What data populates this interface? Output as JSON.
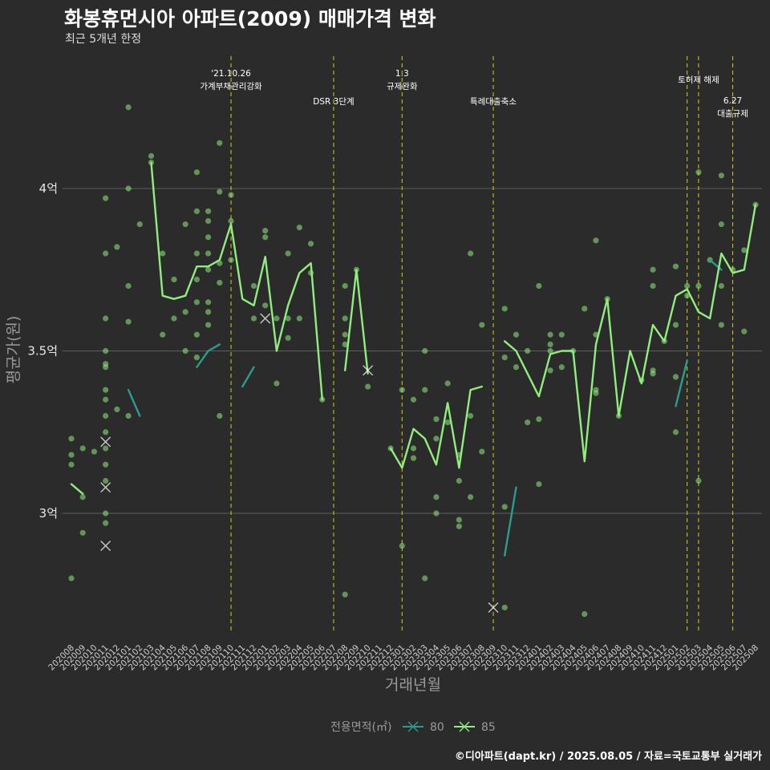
{
  "header": {
    "title": "화봉휴먼시아 아파트(2009) 매매가격 변화",
    "subtitle": "최근 5개년 한정",
    "caption": "©디아파트(dapt.kr) / 2025.08.05 / 자료=국토교통부 실거래가"
  },
  "colors": {
    "background": "#2b2b2b",
    "series_80": "#2a9d8f",
    "series_85": "#90ee7e",
    "event_line": "#d4d40a",
    "grid": "#5e5e5e"
  },
  "chart_data": {
    "type": "line",
    "title": "화봉휴먼시아 아파트(2009) 매매가격 변화",
    "subtitle": "최근 5개년 한정",
    "xlabel": "거래년월",
    "ylabel": "평균가(원)",
    "ylim": [
      2.62,
      4.42
    ],
    "yticks": [
      {
        "value": 3.0,
        "label": "3억"
      },
      {
        "value": 3.5,
        "label": "3.5억"
      },
      {
        "value": 4.0,
        "label": "4억"
      }
    ],
    "grid": true,
    "legend": {
      "title": "전용면적(㎡)",
      "position": "bottom",
      "entries": [
        "80",
        "85"
      ]
    },
    "x": [
      "202008",
      "202009",
      "202010",
      "202011",
      "202012",
      "202101",
      "202102",
      "202103",
      "202104",
      "202105",
      "202106",
      "202107",
      "202108",
      "202109",
      "202110",
      "202111",
      "202112",
      "202201",
      "202202",
      "202203",
      "202204",
      "202205",
      "202206",
      "202207",
      "202208",
      "202209",
      "202210",
      "202211",
      "202212",
      "202301",
      "202302",
      "202303",
      "202304",
      "202305",
      "202306",
      "202307",
      "202308",
      "202309",
      "202310",
      "202311",
      "202312",
      "202401",
      "202402",
      "202403",
      "202404",
      "202405",
      "202406",
      "202407",
      "202408",
      "202409",
      "202410",
      "202411",
      "202412",
      "202501",
      "202502",
      "202503",
      "202504",
      "202505",
      "202506",
      "202507",
      "202508"
    ],
    "series": [
      {
        "name": "80",
        "values": [
          null,
          null,
          null,
          3.06,
          null,
          3.38,
          3.3,
          null,
          3.3,
          null,
          null,
          3.45,
          3.5,
          3.52,
          null,
          3.39,
          3.45,
          null,
          null,
          null,
          null,
          null,
          null,
          null,
          null,
          null,
          null,
          null,
          null,
          null,
          3.15,
          null,
          2.9,
          null,
          2.99,
          null,
          3.0,
          null,
          2.87,
          3.08,
          null,
          null,
          null,
          null,
          null,
          2.99,
          null,
          null,
          null,
          null,
          3.3,
          null,
          null,
          3.33,
          3.47,
          null,
          3.78,
          3.75,
          null,
          3.68,
          null
        ]
      },
      {
        "name": "85",
        "values": [
          3.09,
          3.06,
          null,
          3.3,
          null,
          3.77,
          null,
          4.08,
          3.67,
          3.66,
          3.67,
          3.76,
          3.76,
          3.78,
          3.89,
          3.66,
          3.64,
          3.79,
          3.5,
          3.64,
          3.74,
          3.77,
          3.35,
          null,
          3.44,
          3.75,
          3.43,
          null,
          3.2,
          3.14,
          3.26,
          3.23,
          3.15,
          3.34,
          3.14,
          3.38,
          3.39,
          null,
          3.53,
          3.5,
          3.43,
          3.36,
          3.49,
          3.5,
          3.5,
          3.16,
          3.52,
          3.66,
          3.3,
          3.5,
          3.4,
          3.58,
          3.53,
          3.67,
          3.69,
          3.62,
          3.6,
          3.8,
          3.74,
          3.75,
          3.95
        ]
      }
    ],
    "scatter": [
      {
        "x": "202008",
        "y": 3.23
      },
      {
        "x": "202008",
        "y": 3.18
      },
      {
        "x": "202008",
        "y": 3.15
      },
      {
        "x": "202008",
        "y": 2.8
      },
      {
        "x": "202009",
        "y": 3.2
      },
      {
        "x": "202009",
        "y": 2.94
      },
      {
        "x": "202009",
        "y": 3.05
      },
      {
        "x": "202010",
        "y": 3.19
      },
      {
        "x": "202011",
        "y": 3.97
      },
      {
        "x": "202011",
        "y": 3.8
      },
      {
        "x": "202011",
        "y": 3.6
      },
      {
        "x": "202011",
        "y": 3.5
      },
      {
        "x": "202011",
        "y": 3.46
      },
      {
        "x": "202011",
        "y": 3.45
      },
      {
        "x": "202011",
        "y": 3.38
      },
      {
        "x": "202011",
        "y": 3.35
      },
      {
        "x": "202011",
        "y": 3.3
      },
      {
        "x": "202011",
        "y": 3.25
      },
      {
        "x": "202011",
        "y": 3.2
      },
      {
        "x": "202011",
        "y": 3.15
      },
      {
        "x": "202011",
        "y": 3.1
      },
      {
        "x": "202011",
        "y": 3.0
      },
      {
        "x": "202011",
        "y": 2.97
      },
      {
        "x": "202012",
        "y": 3.82
      },
      {
        "x": "202012",
        "y": 3.32
      },
      {
        "x": "202101",
        "y": 4.25
      },
      {
        "x": "202101",
        "y": 4.0
      },
      {
        "x": "202101",
        "y": 3.7
      },
      {
        "x": "202101",
        "y": 3.59
      },
      {
        "x": "202101",
        "y": 3.3
      },
      {
        "x": "202102",
        "y": 3.89
      },
      {
        "x": "202103",
        "y": 4.1
      },
      {
        "x": "202103",
        "y": 4.08
      },
      {
        "x": "202104",
        "y": 3.8
      },
      {
        "x": "202104",
        "y": 3.55
      },
      {
        "x": "202105",
        "y": 3.72
      },
      {
        "x": "202105",
        "y": 3.6
      },
      {
        "x": "202106",
        "y": 3.89
      },
      {
        "x": "202106",
        "y": 3.62
      },
      {
        "x": "202106",
        "y": 3.5
      },
      {
        "x": "202107",
        "y": 4.05
      },
      {
        "x": "202107",
        "y": 3.93
      },
      {
        "x": "202107",
        "y": 3.8
      },
      {
        "x": "202107",
        "y": 3.72
      },
      {
        "x": "202107",
        "y": 3.65
      },
      {
        "x": "202107",
        "y": 3.55
      },
      {
        "x": "202107",
        "y": 3.48
      },
      {
        "x": "202108",
        "y": 3.93
      },
      {
        "x": "202108",
        "y": 3.9
      },
      {
        "x": "202108",
        "y": 3.85
      },
      {
        "x": "202108",
        "y": 3.8
      },
      {
        "x": "202108",
        "y": 3.75
      },
      {
        "x": "202108",
        "y": 3.65
      },
      {
        "x": "202108",
        "y": 3.62
      },
      {
        "x": "202108",
        "y": 3.58
      },
      {
        "x": "202109",
        "y": 4.14
      },
      {
        "x": "202109",
        "y": 3.99
      },
      {
        "x": "202109",
        "y": 3.77
      },
      {
        "x": "202109",
        "y": 3.71
      },
      {
        "x": "202109",
        "y": 3.3
      },
      {
        "x": "202110",
        "y": 3.98
      },
      {
        "x": "202110",
        "y": 3.9
      },
      {
        "x": "202110",
        "y": 3.78
      },
      {
        "x": "202112",
        "y": 3.7
      },
      {
        "x": "202112",
        "y": 3.6
      },
      {
        "x": "202201",
        "y": 3.87
      },
      {
        "x": "202201",
        "y": 3.85
      },
      {
        "x": "202201",
        "y": 3.64
      },
      {
        "x": "202202",
        "y": 3.6
      },
      {
        "x": "202202",
        "y": 3.4
      },
      {
        "x": "202203",
        "y": 3.8
      },
      {
        "x": "202203",
        "y": 3.6
      },
      {
        "x": "202203",
        "y": 3.54
      },
      {
        "x": "202204",
        "y": 3.88
      },
      {
        "x": "202204",
        "y": 3.6
      },
      {
        "x": "202205",
        "y": 3.83
      },
      {
        "x": "202205",
        "y": 3.74
      },
      {
        "x": "202206",
        "y": 3.35
      },
      {
        "x": "202208",
        "y": 3.7
      },
      {
        "x": "202208",
        "y": 3.6
      },
      {
        "x": "202208",
        "y": 3.55
      },
      {
        "x": "202208",
        "y": 3.52
      },
      {
        "x": "202208",
        "y": 2.75
      },
      {
        "x": "202209",
        "y": 3.75
      },
      {
        "x": "202210",
        "y": 3.39
      },
      {
        "x": "202212",
        "y": 3.2
      },
      {
        "x": "202301",
        "y": 3.38
      },
      {
        "x": "202301",
        "y": 2.9
      },
      {
        "x": "202302",
        "y": 3.35
      },
      {
        "x": "202302",
        "y": 3.2
      },
      {
        "x": "202302",
        "y": 3.17
      },
      {
        "x": "202303",
        "y": 3.5
      },
      {
        "x": "202303",
        "y": 3.38
      },
      {
        "x": "202303",
        "y": 2.8
      },
      {
        "x": "202304",
        "y": 3.29
      },
      {
        "x": "202304",
        "y": 3.23
      },
      {
        "x": "202304",
        "y": 3.05
      },
      {
        "x": "202304",
        "y": 3.0
      },
      {
        "x": "202305",
        "y": 3.4
      },
      {
        "x": "202305",
        "y": 3.28
      },
      {
        "x": "202306",
        "y": 3.18
      },
      {
        "x": "202306",
        "y": 3.1
      },
      {
        "x": "202306",
        "y": 2.98
      },
      {
        "x": "202306",
        "y": 2.96
      },
      {
        "x": "202307",
        "y": 3.8
      },
      {
        "x": "202307",
        "y": 3.3
      },
      {
        "x": "202307",
        "y": 3.05
      },
      {
        "x": "202308",
        "y": 3.58
      },
      {
        "x": "202308",
        "y": 3.19
      },
      {
        "x": "202310",
        "y": 3.63
      },
      {
        "x": "202310",
        "y": 3.48
      },
      {
        "x": "202310",
        "y": 3.02
      },
      {
        "x": "202310",
        "y": 2.71
      },
      {
        "x": "202311",
        "y": 3.55
      },
      {
        "x": "202311",
        "y": 3.45
      },
      {
        "x": "202312",
        "y": 3.5
      },
      {
        "x": "202312",
        "y": 3.28
      },
      {
        "x": "202401",
        "y": 3.7
      },
      {
        "x": "202401",
        "y": 3.29
      },
      {
        "x": "202401",
        "y": 3.09
      },
      {
        "x": "202402",
        "y": 3.55
      },
      {
        "x": "202402",
        "y": 3.52
      },
      {
        "x": "202402",
        "y": 3.5
      },
      {
        "x": "202402",
        "y": 3.44
      },
      {
        "x": "202403",
        "y": 3.55
      },
      {
        "x": "202403",
        "y": 3.45
      },
      {
        "x": "202404",
        "y": 3.5
      },
      {
        "x": "202405",
        "y": 3.63
      },
      {
        "x": "202405",
        "y": 2.69
      },
      {
        "x": "202406",
        "y": 3.84
      },
      {
        "x": "202406",
        "y": 3.55
      },
      {
        "x": "202406",
        "y": 3.38
      },
      {
        "x": "202406",
        "y": 3.37
      },
      {
        "x": "202407",
        "y": 3.66
      },
      {
        "x": "202408",
        "y": 3.3
      },
      {
        "x": "202410",
        "y": 3.41
      },
      {
        "x": "202411",
        "y": 3.75
      },
      {
        "x": "202411",
        "y": 3.7
      },
      {
        "x": "202411",
        "y": 3.44
      },
      {
        "x": "202411",
        "y": 3.43
      },
      {
        "x": "202412",
        "y": 3.53
      },
      {
        "x": "202501",
        "y": 3.76
      },
      {
        "x": "202501",
        "y": 3.58
      },
      {
        "x": "202501",
        "y": 3.42
      },
      {
        "x": "202501",
        "y": 3.25
      },
      {
        "x": "202502",
        "y": 3.7
      },
      {
        "x": "202502",
        "y": 3.67
      },
      {
        "x": "202503",
        "y": 4.05
      },
      {
        "x": "202503",
        "y": 3.7
      },
      {
        "x": "202503",
        "y": 3.1
      },
      {
        "x": "202504",
        "y": 3.78
      },
      {
        "x": "202505",
        "y": 4.04
      },
      {
        "x": "202505",
        "y": 3.89
      },
      {
        "x": "202505",
        "y": 3.7
      },
      {
        "x": "202505",
        "y": 3.58
      },
      {
        "x": "202506",
        "y": 3.75
      },
      {
        "x": "202507",
        "y": 3.81
      },
      {
        "x": "202507",
        "y": 3.56
      },
      {
        "x": "202508",
        "y": 3.95
      }
    ],
    "cross_markers": [
      {
        "x": "202011",
        "y": 3.22
      },
      {
        "x": "202011",
        "y": 3.08
      },
      {
        "x": "202011",
        "y": 2.9
      },
      {
        "x": "202201",
        "y": 3.6
      },
      {
        "x": "202210",
        "y": 3.44
      },
      {
        "x": "202309",
        "y": 2.71
      }
    ],
    "events": [
      {
        "x": "202110",
        "line1": "'21.10.26",
        "line2": "가계부채관리강화",
        "row": 0
      },
      {
        "x": "202207",
        "line1": "DSR 3단계",
        "line2": "",
        "row": 1
      },
      {
        "x": "202301",
        "line1": "1.3",
        "line2": "규제완화",
        "row": 0
      },
      {
        "x": "202309",
        "line1": "특례대출축소",
        "line2": "",
        "row": 1
      },
      {
        "x": "202502",
        "line1": "",
        "line2": "",
        "row": 0
      },
      {
        "x": "202503",
        "line1": "토허제 해제",
        "line2": "",
        "row": 2
      },
      {
        "x": "202506",
        "line1": "6.27",
        "line2": "대출규제",
        "row": 3
      }
    ]
  }
}
